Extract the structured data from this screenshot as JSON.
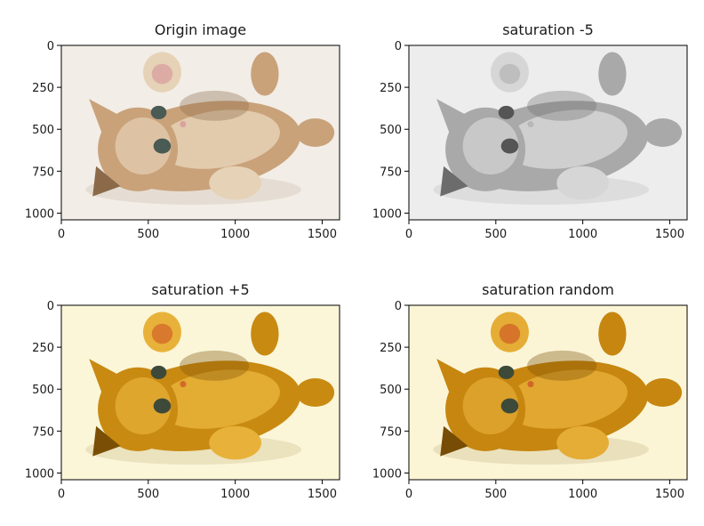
{
  "chart_data": [
    {
      "type": "image",
      "title": "Origin image",
      "image_effect": "original",
      "image_width": 1600,
      "image_height": 1040,
      "xlim": [
        0,
        1600
      ],
      "ylim": [
        1040,
        0
      ],
      "x_ticks": [
        0,
        500,
        1000,
        1500
      ],
      "y_ticks": [
        0,
        250,
        500,
        750,
        1000
      ],
      "palette": {
        "bg": "#f2ede6",
        "fur": "#c9a27a",
        "fur_light": "#e6d2b6",
        "fur_dark": "#8a6a48",
        "pads": "#d9a3a0",
        "eye": "#4a5a55"
      }
    },
    {
      "type": "image",
      "title": "saturation -5",
      "image_effect": "grayscale",
      "image_width": 1600,
      "image_height": 1040,
      "xlim": [
        0,
        1600
      ],
      "ylim": [
        1040,
        0
      ],
      "x_ticks": [
        0,
        500,
        1000,
        1500
      ],
      "y_ticks": [
        0,
        250,
        500,
        750,
        1000
      ],
      "palette": {
        "bg": "#ededed",
        "fur": "#a9a9a9",
        "fur_light": "#d6d6d6",
        "fur_dark": "#6c6c6c",
        "pads": "#b8b8b8",
        "eye": "#555555"
      }
    },
    {
      "type": "image",
      "title": "saturation +5",
      "image_effect": "oversaturated",
      "image_width": 1600,
      "image_height": 1040,
      "xlim": [
        0,
        1600
      ],
      "ylim": [
        1040,
        0
      ],
      "x_ticks": [
        0,
        500,
        1000,
        1500
      ],
      "y_ticks": [
        0,
        250,
        500,
        750,
        1000
      ],
      "palette": {
        "bg": "#fbf6d8",
        "fur": "#c98a12",
        "fur_light": "#e8b23a",
        "fur_dark": "#7a4f05",
        "pads": "#d46a2a",
        "eye": "#3d4a3a"
      }
    },
    {
      "type": "image",
      "title": "saturation random",
      "image_effect": "oversaturated",
      "image_width": 1600,
      "image_height": 1040,
      "xlim": [
        0,
        1600
      ],
      "ylim": [
        1040,
        0
      ],
      "x_ticks": [
        0,
        500,
        1000,
        1500
      ],
      "y_ticks": [
        0,
        250,
        500,
        750,
        1000
      ],
      "palette": {
        "bg": "#fbf5d6",
        "fur": "#c68610",
        "fur_light": "#e5ad36",
        "fur_dark": "#774c04",
        "pads": "#d26628",
        "eye": "#3d4a3a"
      }
    }
  ]
}
